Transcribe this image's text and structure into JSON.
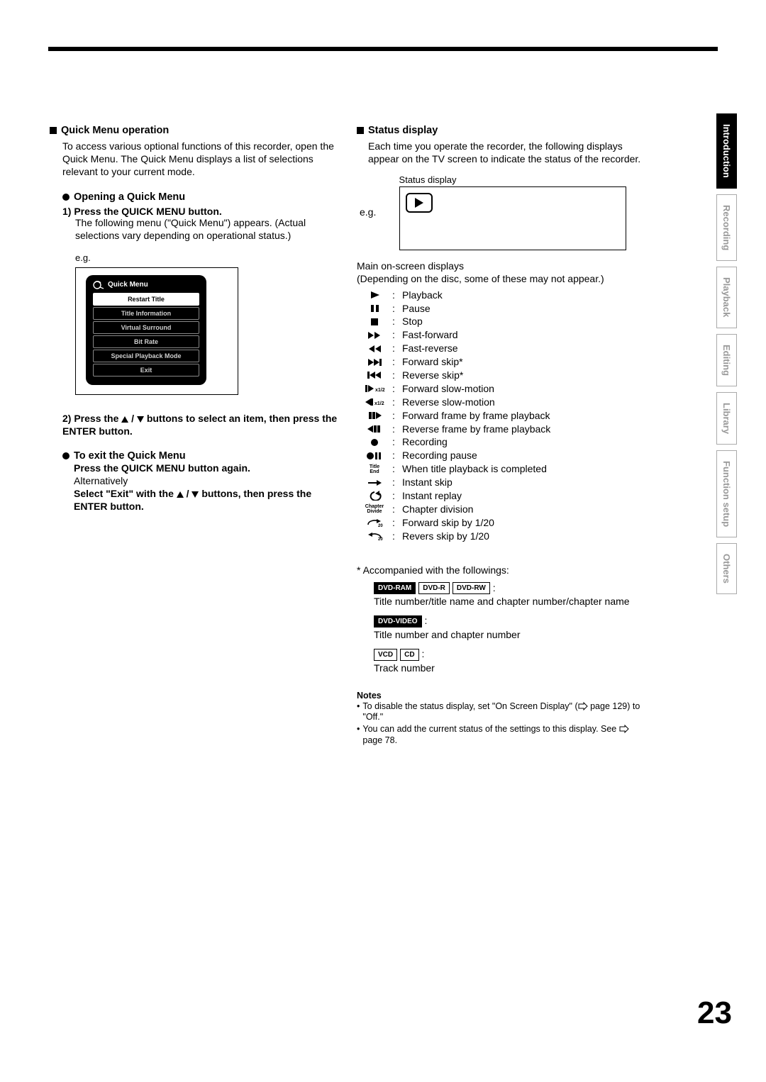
{
  "page_number": "23",
  "tabs": [
    "Introduction",
    "Recording",
    "Playback",
    "Editing",
    "Library",
    "Function setup",
    "Others"
  ],
  "active_tab_index": 0,
  "left": {
    "section_title": "Quick Menu operation",
    "intro": "To access various optional functions of this recorder, open the Quick Menu. The Quick Menu displays a list of selections relevant to your current mode.",
    "open_title": "Opening a Quick Menu",
    "step1_label": "1) Press the QUICK MENU button.",
    "step1_body": "The following menu (\"Quick Menu\") appears. (Actual selections vary depending on operational status.)",
    "eg": "e.g.",
    "quick_menu_title": "Quick Menu",
    "quick_menu_items": [
      "Restart Title",
      "Title Information",
      "Virtual Surround",
      "Bit Rate",
      "Special Playback Mode",
      "Exit"
    ],
    "step2_a": "2) Press the ",
    "step2_b": " buttons to select an item, then press the ENTER button.",
    "exit_title": "To exit the Quick Menu",
    "exit_line1": "Press the QUICK MENU button again.",
    "exit_alt": "Alternatively",
    "exit_line2a": "Select \"Exit\" with the ",
    "exit_line2b": " buttons, then press the ENTER button."
  },
  "right": {
    "section_title": "Status display",
    "intro": "Each time you operate the recorder, the following displays appear on the TV screen to indicate the status of the recorder.",
    "sd_label": "Status display",
    "eg": "e.g.",
    "mod_head1": "Main on-screen displays",
    "mod_head2": "(Depending on the disc, some of these may not appear.)",
    "icons": [
      {
        "k": "play",
        "t": "Playback"
      },
      {
        "k": "pause",
        "t": "Pause"
      },
      {
        "k": "stop",
        "t": "Stop"
      },
      {
        "k": "ff",
        "t": "Fast-forward"
      },
      {
        "k": "fr",
        "t": "Fast-reverse"
      },
      {
        "k": "fskip",
        "t": "Forward skip*"
      },
      {
        "k": "rskip",
        "t": "Reverse skip*"
      },
      {
        "k": "fslow",
        "t": "Forward slow-motion"
      },
      {
        "k": "rslow",
        "t": "Reverse slow-motion"
      },
      {
        "k": "fframe",
        "t": "Forward frame by frame playback"
      },
      {
        "k": "rframe",
        "t": "Reverse frame by frame playback"
      },
      {
        "k": "rec",
        "t": "Recording"
      },
      {
        "k": "recpause",
        "t": "Recording pause"
      },
      {
        "k": "titleend",
        "t": "When title playback is completed"
      },
      {
        "k": "iskip",
        "t": "Instant skip"
      },
      {
        "k": "ireplay",
        "t": "Instant replay"
      },
      {
        "k": "chdiv",
        "t": "Chapter division"
      },
      {
        "k": "fs20",
        "t": "Forward skip by 1/20"
      },
      {
        "k": "rs20",
        "t": "Revers skip by 1/20"
      }
    ],
    "footnote": "* Accompanied with the followings:",
    "disc1_chips": [
      "DVD-RAM",
      "DVD-R",
      "DVD-RW"
    ],
    "disc1_text": "Title number/title name and chapter number/chapter name",
    "disc2_chips": [
      "DVD-VIDEO"
    ],
    "disc2_text": "Title number and chapter number",
    "disc3_chips": [
      "VCD",
      "CD"
    ],
    "disc3_text": "Track number",
    "notes_head": "Notes",
    "note1a": "To disable the status display, set \"On Screen Display\" (",
    "note1b": " page 129) to \"Off.\"",
    "note2a": "You can add the current status of the settings to this display. See ",
    "note2b": " page 78."
  }
}
